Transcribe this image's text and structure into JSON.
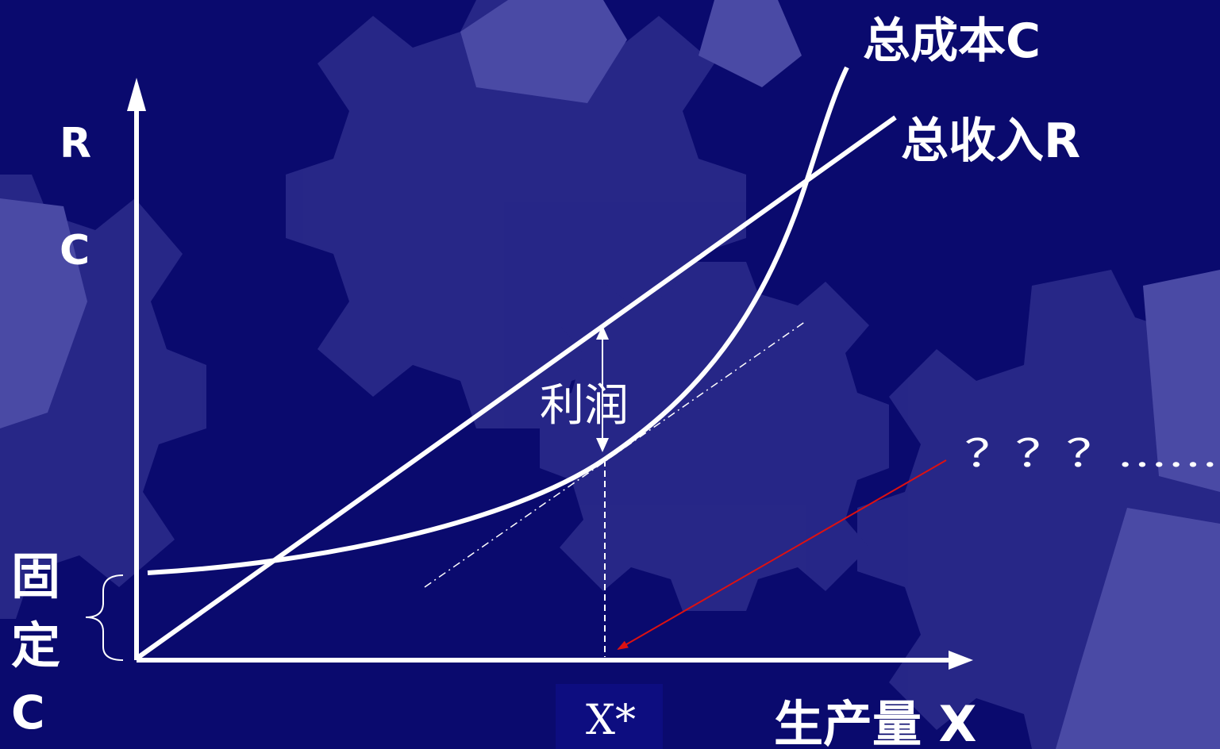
{
  "labels": {
    "total_cost": "总成本C",
    "total_revenue": "总收入R",
    "y_axis_top": "R",
    "y_axis_bottom": "C",
    "fixed_cost_1": "固",
    "fixed_cost_2": "定",
    "fixed_cost_3": "C",
    "profit": "利润",
    "optimal_x": "X*",
    "x_axis": "生产量 X",
    "question": "？？？……"
  },
  "colors": {
    "background": "#0a0a6e",
    "gear": "#3d3d9a",
    "curve": "#ffffff",
    "arrow_red": "#dd1111"
  }
}
